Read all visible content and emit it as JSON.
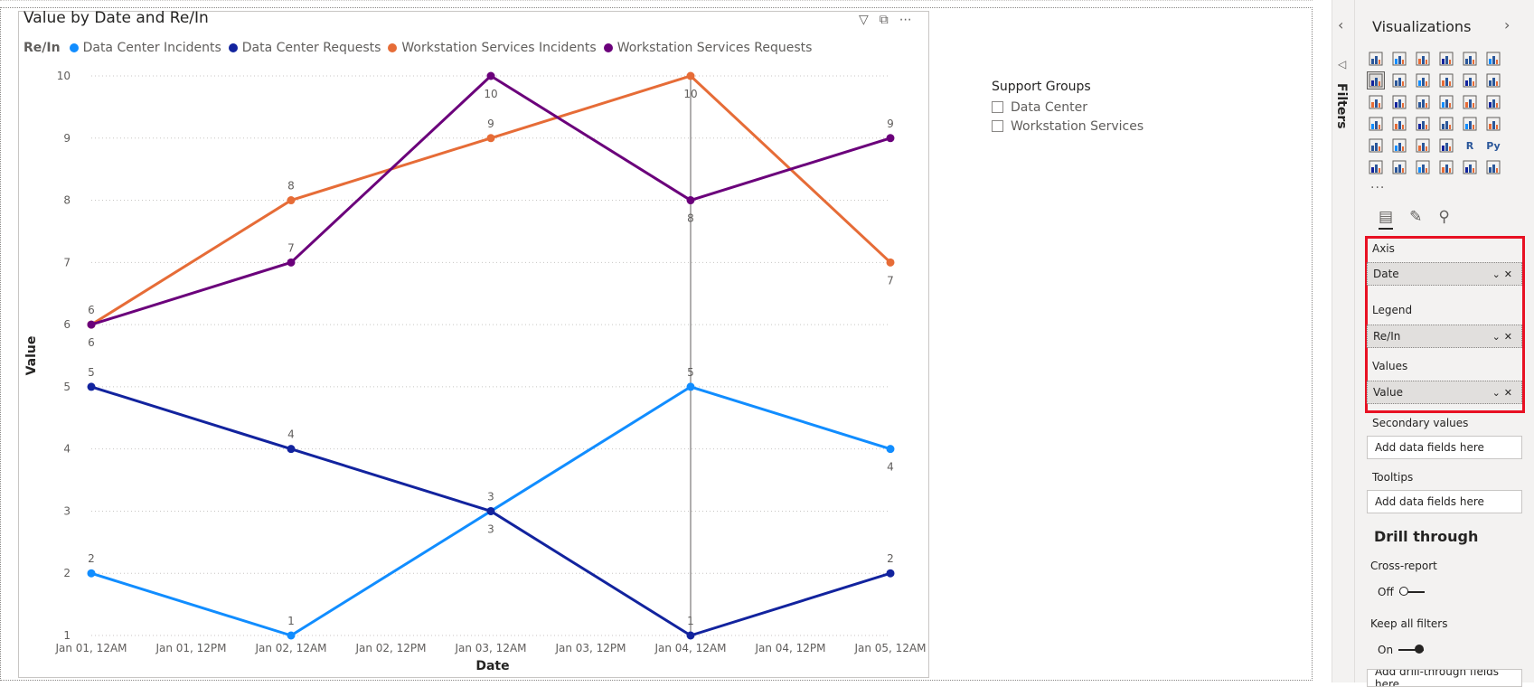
{
  "visual": {
    "title": "Value by Date and Re/In",
    "header_icons": [
      "filter-icon",
      "focus-mode-icon",
      "more-options-icon"
    ]
  },
  "chart_data": {
    "type": "line",
    "title": "Value by Date and Re/In",
    "xlabel": "Date",
    "ylabel": "Value",
    "legend_title": "Re/In",
    "legend_position": "top-left",
    "x_ticks": [
      "Jan 01, 12AM",
      "Jan 01, 12PM",
      "Jan 02, 12AM",
      "Jan 02, 12PM",
      "Jan 03, 12AM",
      "Jan 03, 12PM",
      "Jan 04, 12AM",
      "Jan 04, 12PM",
      "Jan 05, 12AM"
    ],
    "x": [
      "Jan 01, 12AM",
      "Jan 02, 12AM",
      "Jan 03, 12AM",
      "Jan 04, 12AM",
      "Jan 05, 12AM"
    ],
    "ylim": [
      1,
      10
    ],
    "y_ticks": [
      1,
      2,
      3,
      4,
      5,
      6,
      7,
      8,
      9,
      10
    ],
    "grid": true,
    "series": [
      {
        "name": "Data Center Incidents",
        "color": "#118dff",
        "values": [
          2,
          1,
          3,
          5,
          4
        ],
        "label_pos": [
          "above",
          "above",
          "above",
          "above",
          "below"
        ]
      },
      {
        "name": "Data Center Requests",
        "color": "#12239e",
        "values": [
          5,
          4,
          3,
          1,
          2
        ],
        "label_pos": [
          "above",
          "above",
          "below",
          "above",
          "above"
        ]
      },
      {
        "name": "Workstation Services Incidents",
        "color": "#e66c37",
        "values": [
          6,
          8,
          9,
          10,
          7
        ],
        "label_pos": [
          "above",
          "above",
          "above",
          "below",
          "below"
        ]
      },
      {
        "name": "Workstation Services Requests",
        "color": "#6b007b",
        "values": [
          6,
          7,
          10,
          8,
          9
        ],
        "label_pos": [
          "below",
          "above",
          "below",
          "below",
          "above"
        ]
      }
    ],
    "hover_line_at": "Jan 04, 12AM"
  },
  "slicer": {
    "title": "Support Groups",
    "items": [
      "Data Center",
      "Workstation Services"
    ]
  },
  "filters_pane": {
    "label": "Filters"
  },
  "viz_pane": {
    "title": "Visualizations",
    "icons": [
      "stacked-bar-icon",
      "stacked-column-icon",
      "clustered-bar-icon",
      "clustered-column-icon",
      "100-stacked-bar-icon",
      "100-stacked-column-icon",
      "blank",
      "line-chart-icon",
      "area-chart-icon",
      "stacked-area-icon",
      "line-clustered-column-icon",
      "line-stacked-column-icon",
      "ribbon-chart-icon",
      "blank",
      "waterfall-icon",
      "funnel-icon",
      "scatter-icon",
      "pie-icon",
      "donut-icon",
      "treemap-icon",
      "blank",
      "map-icon",
      "filled-map-icon",
      "shape-map-icon",
      "gauge-icon",
      "card-icon",
      "multi-row-card-icon",
      "blank",
      "kpi-icon",
      "slicer-icon",
      "table-icon",
      "matrix-icon",
      "r-visual-icon",
      "python-visual-icon",
      "blank",
      "key-influencers-icon",
      "decomposition-tree-icon",
      "qa-icon",
      "smart-narrative-icon",
      "paginated-report-icon",
      "arcgis-icon",
      "blank"
    ],
    "icon_glyphs": {
      "r-visual-icon": "R",
      "python-visual-icon": "Py"
    },
    "more": "···",
    "tabs": [
      "fields-tab-icon",
      "format-tab-icon",
      "analytics-tab-icon"
    ],
    "wells": {
      "axis_label": "Axis",
      "axis_value": "Date",
      "legend_label": "Legend",
      "legend_value": "Re/In",
      "values_label": "Values",
      "values_value": "Value",
      "secondary_label": "Secondary values",
      "secondary_placeholder": "Add data fields here",
      "tooltips_label": "Tooltips",
      "tooltips_placeholder": "Add data fields here"
    },
    "drill": {
      "title": "Drill through",
      "cross_report_label": "Cross-report",
      "cross_report_state": "Off",
      "keep_filters_label": "Keep all filters",
      "keep_filters_state": "On",
      "placeholder": "Add drill-through fields here"
    }
  },
  "colors": {
    "highlight": "#e81123",
    "pane_bg": "#f3f2f1"
  }
}
